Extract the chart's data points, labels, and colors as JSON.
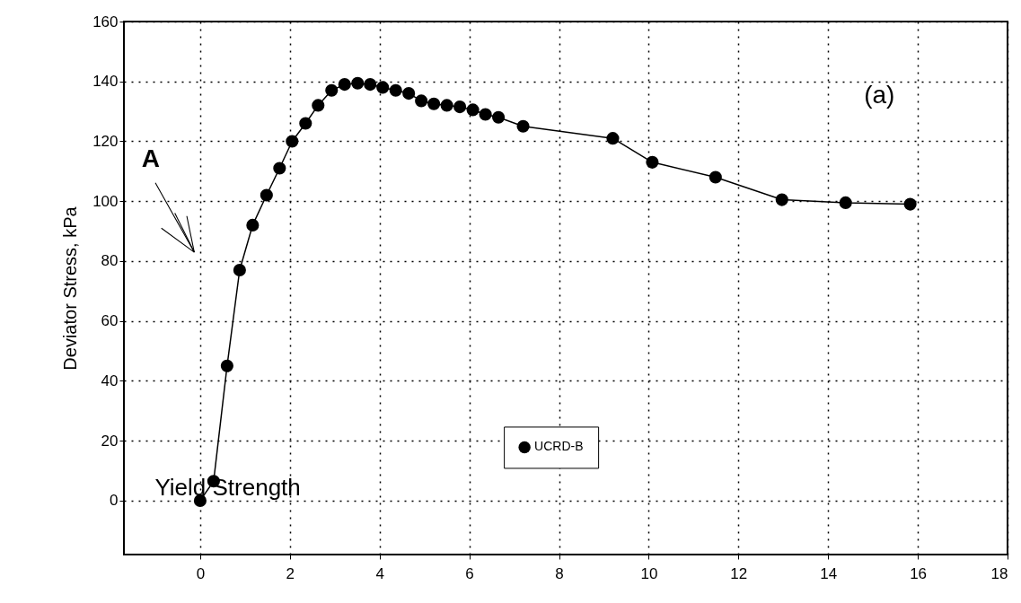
{
  "chart_data": {
    "type": "line",
    "ylabel": "Deviator Stress, kPa",
    "xlim": [
      -1.7,
      18
    ],
    "xticks": [
      0,
      2,
      4,
      6,
      8,
      10,
      12,
      14,
      16,
      18
    ],
    "ylim": [
      -18,
      160
    ],
    "yticks": [
      0,
      20,
      40,
      60,
      80,
      100,
      120,
      140,
      160
    ],
    "grid": true,
    "legend": "bottom",
    "marker": "circle",
    "line_style": "solid",
    "series": [
      {
        "name": "UCRD-B",
        "color": "#000000",
        "x": [
          0,
          0.3,
          0.6,
          0.88,
          1.17,
          1.48,
          1.77,
          2.05,
          2.35,
          2.63,
          2.93,
          3.22,
          3.51,
          3.79,
          4.07,
          4.36,
          4.65,
          4.93,
          5.21,
          5.5,
          5.79,
          6.08,
          6.36,
          6.65,
          7.2,
          9.2,
          10.08,
          11.49,
          12.97,
          14.39,
          15.83
        ],
        "values": [
          0,
          6.5,
          45,
          77,
          92,
          102,
          111,
          120,
          126,
          132,
          137,
          139,
          139.4,
          139,
          138,
          137,
          136,
          133.5,
          132.5,
          132,
          131.5,
          130.5,
          129,
          128,
          125,
          121,
          113,
          108,
          100.5,
          99.5,
          99
        ]
      }
    ],
    "annotations": [
      "A",
      "Yield Strength",
      "(a)"
    ]
  }
}
